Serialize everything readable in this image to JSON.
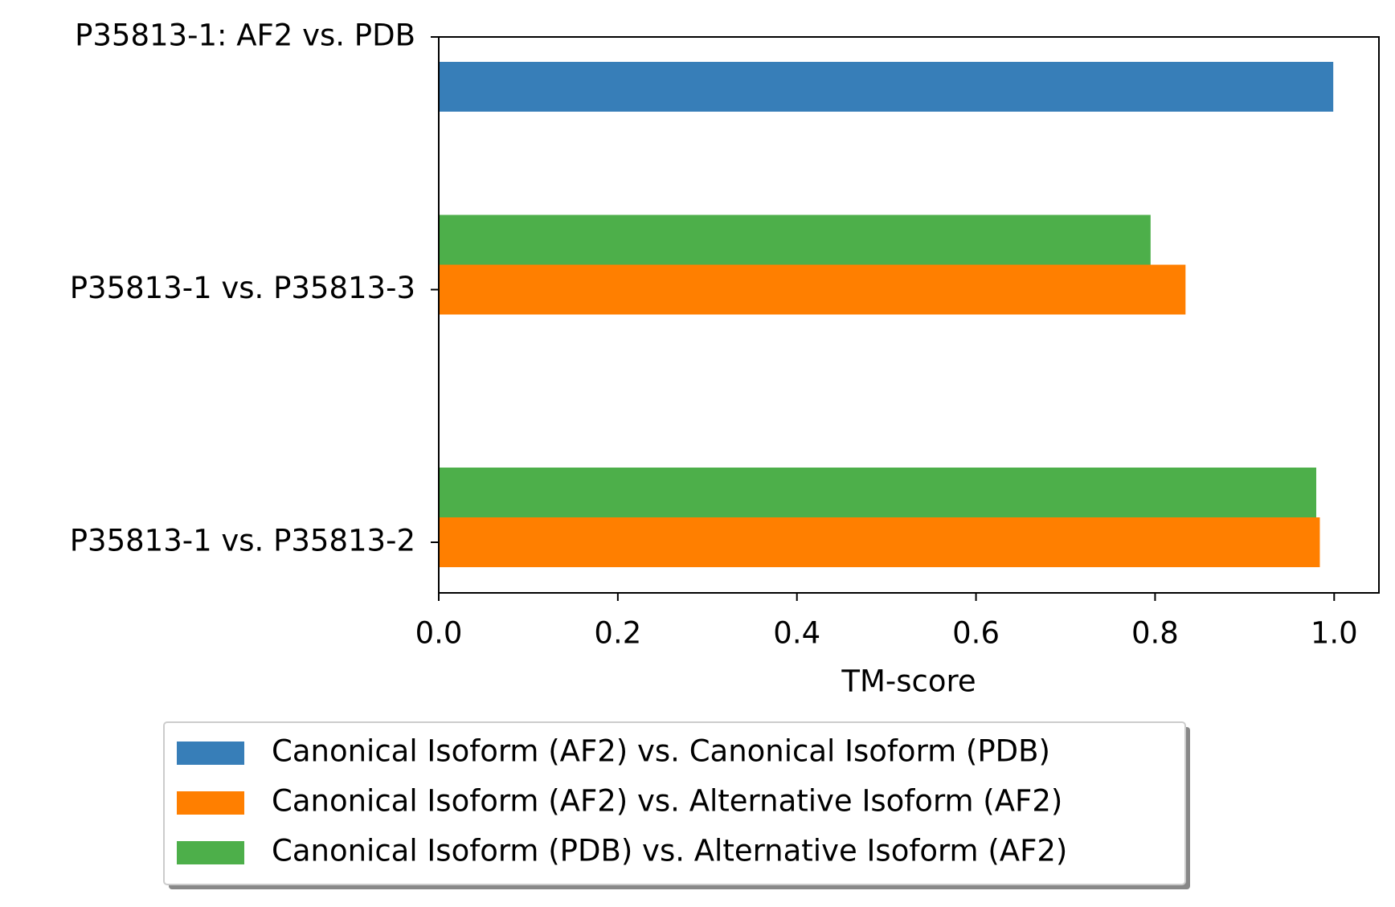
{
  "chart_data": {
    "type": "barh",
    "categories": [
      "P35813-1: AF2 vs. PDB",
      "P35813-1 vs. P35813-3",
      "P35813-1 vs. P35813-2"
    ],
    "series": [
      {
        "name": "Canonical Isoform (AF2) vs. Canonical Isoform (PDB)",
        "color": "#377eb8",
        "values": [
          0.999,
          null,
          null
        ]
      },
      {
        "name": "Canonical Isoform (AF2) vs. Alternative Isoform (AF2)",
        "color": "#ff7f00",
        "values": [
          null,
          0.834,
          0.984
        ]
      },
      {
        "name": "Canonical Isoform (PDB) vs. Alternative Isoform (AF2)",
        "color": "#4daf4a",
        "values": [
          null,
          0.795,
          0.98
        ]
      }
    ],
    "xlabel": "TM-score",
    "xlim": [
      0,
      1.05
    ],
    "xticks": [
      {
        "value": 0,
        "label": "0.0"
      },
      0.2,
      0.4,
      0.6,
      0.8,
      {
        "value": 1,
        "label": "1.0"
      }
    ],
    "legend": "below"
  }
}
